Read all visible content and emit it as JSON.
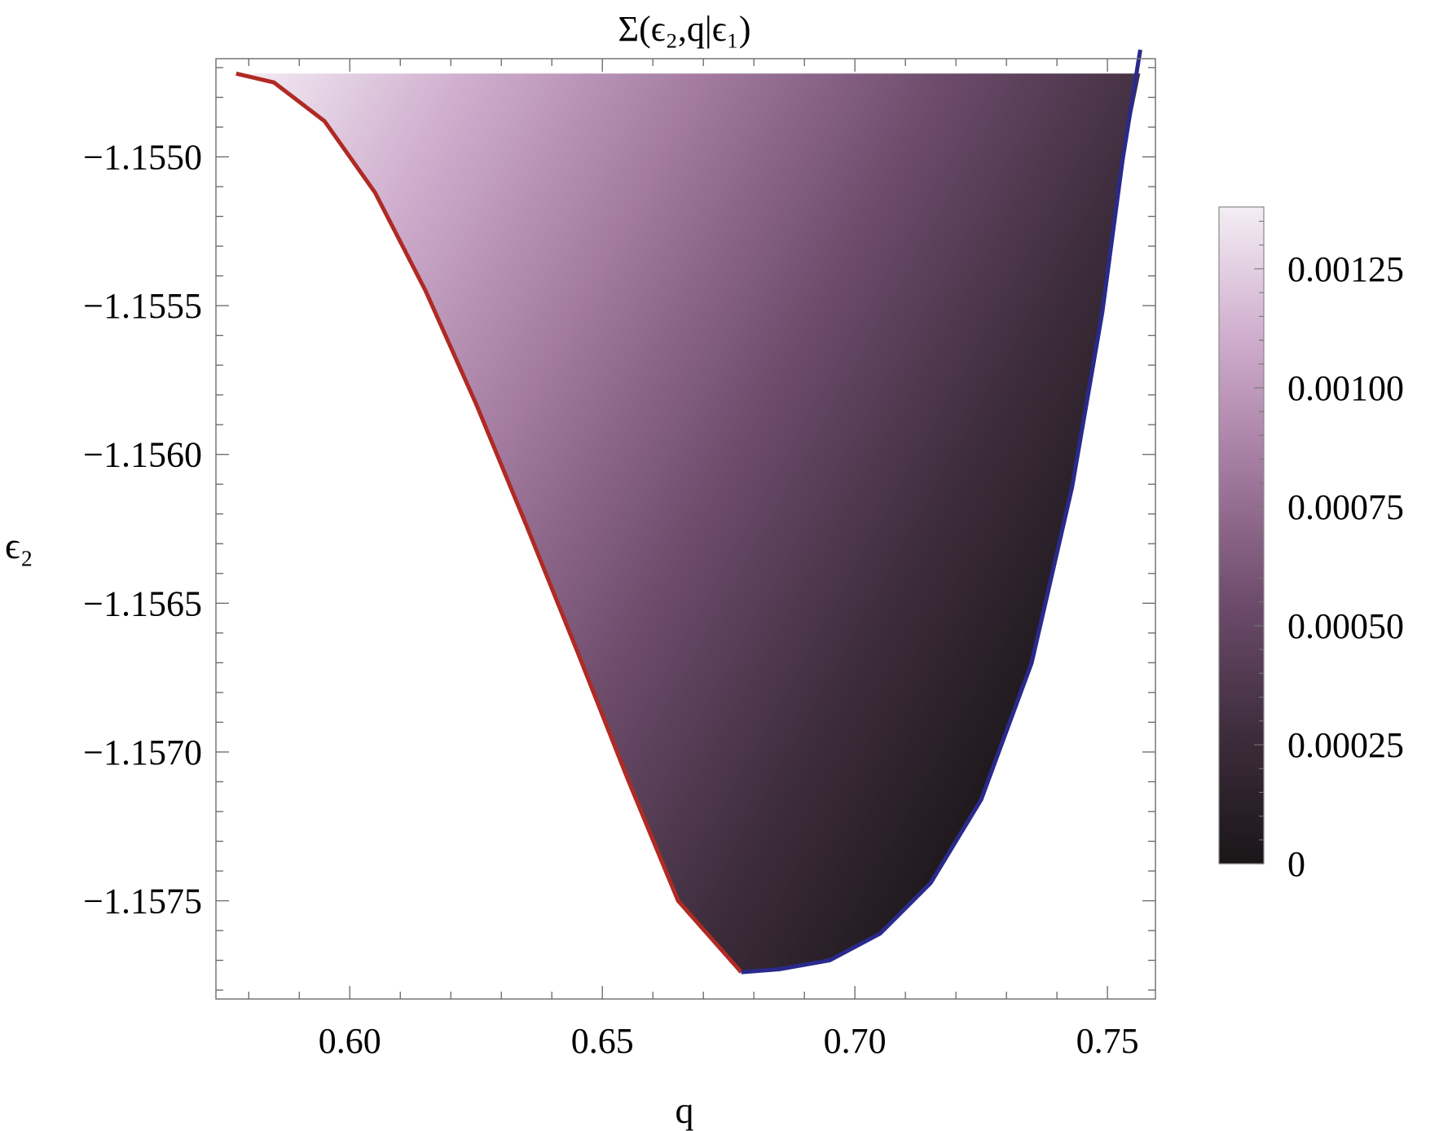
{
  "chart_data": {
    "type": "heatmap",
    "title": "Σ(ϵ₂,q|ϵ₁)",
    "xlabel": "q",
    "ylabel": "ϵ₂",
    "xlim": [
      0.5735,
      0.7595
    ],
    "ylim": [
      -1.15783,
      -1.15467
    ],
    "x_ticks": [
      0.6,
      0.65,
      0.7,
      0.75
    ],
    "x_tick_labels": [
      "0.60",
      "0.65",
      "0.70",
      "0.75"
    ],
    "y_ticks": [
      -1.155,
      -1.1555,
      -1.156,
      -1.1565,
      -1.157,
      -1.1575
    ],
    "y_tick_labels": [
      "−1.1550",
      "−1.1555",
      "−1.1560",
      "−1.1565",
      "−1.1570",
      "−1.1575"
    ],
    "colorbar": {
      "range": [
        0,
        0.00138
      ],
      "ticks": [
        0,
        0.00025,
        0.0005,
        0.00075,
        0.001,
        0.00125
      ],
      "tick_labels": [
        "0",
        "0.00025",
        "0.00050",
        "0.00075",
        "0.00100",
        "0.00125"
      ],
      "colors": [
        "#1a1618",
        "#3e2d3d",
        "#6e4c6c",
        "#a37aa0",
        "#cfadcd",
        "#f4eef5"
      ]
    },
    "region": {
      "top_epsilon2": -1.15472,
      "left_boundary": {
        "color": "#b02a24",
        "points": [
          [
            0.5775,
            -1.15472
          ],
          [
            0.585,
            -1.15475
          ],
          [
            0.595,
            -1.15488
          ],
          [
            0.605,
            -1.15512
          ],
          [
            0.615,
            -1.15545
          ],
          [
            0.625,
            -1.15583
          ],
          [
            0.635,
            -1.15624
          ],
          [
            0.645,
            -1.15666
          ],
          [
            0.655,
            -1.15709
          ],
          [
            0.665,
            -1.1575
          ],
          [
            0.6775,
            -1.15774
          ]
        ]
      },
      "right_boundary": {
        "color": "#2a2a8c",
        "points": [
          [
            0.6775,
            -1.15774
          ],
          [
            0.685,
            -1.15773
          ],
          [
            0.695,
            -1.1577
          ],
          [
            0.705,
            -1.15761
          ],
          [
            0.715,
            -1.15744
          ],
          [
            0.725,
            -1.15716
          ],
          [
            0.735,
            -1.1567
          ],
          [
            0.743,
            -1.15611
          ],
          [
            0.749,
            -1.15552
          ],
          [
            0.753,
            -1.15501
          ],
          [
            0.7565,
            -1.15464
          ]
        ]
      }
    }
  }
}
